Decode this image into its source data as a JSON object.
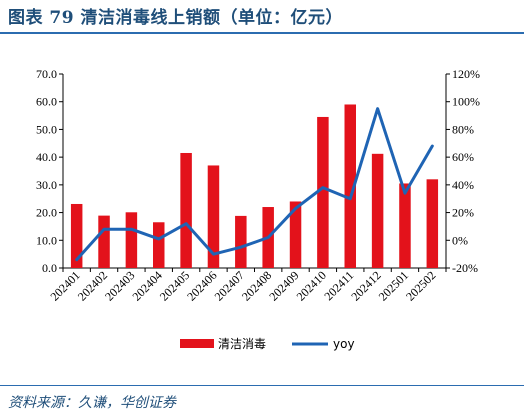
{
  "title": "图表 79    清洁消毒线上销额（单位：亿元）",
  "source": "资料来源：久谦，华创证券",
  "colors": {
    "bar": "#e3121b",
    "line": "#1f64b4",
    "rule": "#2b6cb0"
  },
  "chart_data": {
    "type": "bar",
    "categories": [
      "202401",
      "202402",
      "202403",
      "202404",
      "202405",
      "202406",
      "202407",
      "202408",
      "202409",
      "202410",
      "202411",
      "202412",
      "202501",
      "202502"
    ],
    "series": [
      {
        "name": "清洁消毒",
        "type": "bar",
        "axis": "left",
        "values": [
          23.1,
          18.9,
          20.1,
          16.5,
          41.5,
          37.0,
          18.8,
          22.0,
          24.0,
          54.5,
          59.0,
          41.2,
          30.5,
          32.0
        ]
      },
      {
        "name": "yoy",
        "type": "line",
        "axis": "right",
        "values": [
          -14,
          8,
          8,
          1,
          12,
          -10,
          -5,
          2,
          23,
          38,
          30,
          95,
          34,
          68
        ]
      }
    ],
    "y_left": {
      "min": 0,
      "max": 70,
      "step": 10,
      "ticks": [
        "0.0",
        "10.0",
        "20.0",
        "30.0",
        "40.0",
        "50.0",
        "60.0",
        "70.0"
      ]
    },
    "y_right": {
      "min": -20,
      "max": 120,
      "step": 20,
      "ticks": [
        "-20%",
        "0%",
        "20%",
        "40%",
        "60%",
        "80%",
        "100%",
        "120%"
      ]
    },
    "grid": false,
    "legend": "bottom-center"
  }
}
